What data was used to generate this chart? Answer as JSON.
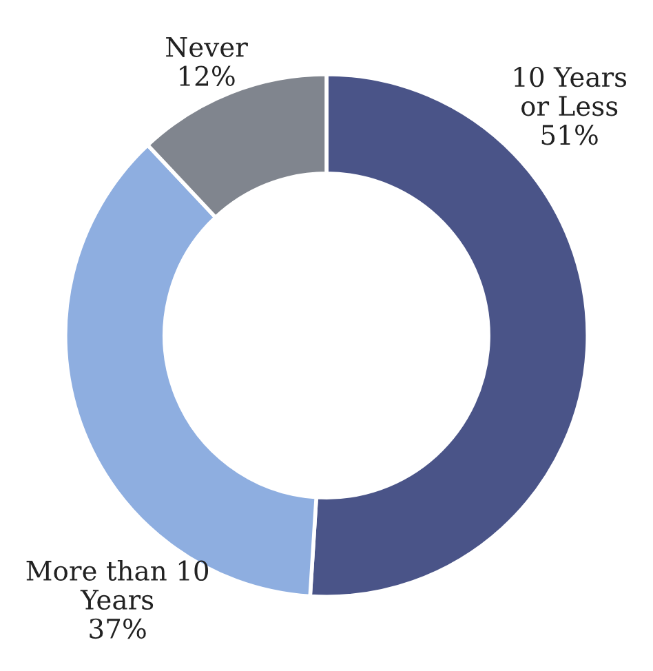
{
  "chart_data": {
    "type": "donut",
    "categories": [
      "10 Years\nor Less",
      "More than 10\nYears",
      "Never"
    ],
    "values": [
      51,
      37,
      12
    ],
    "colors": [
      "#4a5488",
      "#8eaee0",
      "#80858e"
    ],
    "value_labels": [
      "51%",
      "37%",
      "12%"
    ],
    "legend": false
  }
}
